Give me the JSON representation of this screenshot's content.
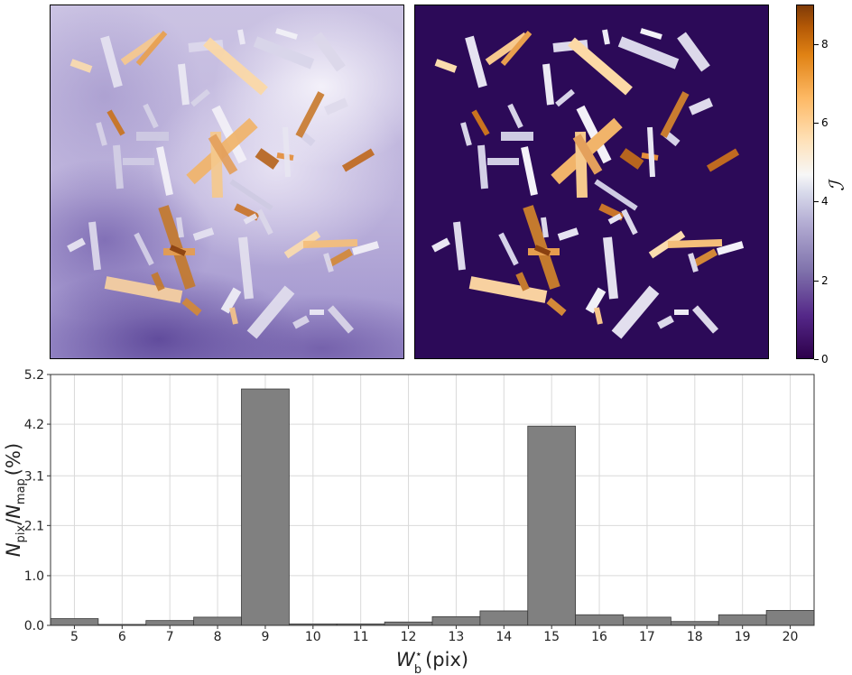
{
  "colorbar": {
    "label": "ℐ",
    "ticks": [
      {
        "label": "0",
        "value": 0
      },
      {
        "label": "2",
        "value": 2
      },
      {
        "label": "4",
        "value": 4
      },
      {
        "label": "6",
        "value": 6
      },
      {
        "label": "8",
        "value": 8
      }
    ],
    "range": [
      0,
      9
    ]
  },
  "chart_data": {
    "type": "bar",
    "categories": [
      "5",
      "6",
      "7",
      "8",
      "9",
      "10",
      "11",
      "12",
      "13",
      "14",
      "15",
      "16",
      "17",
      "18",
      "19",
      "20"
    ],
    "values": [
      0.14,
      0.02,
      0.1,
      0.17,
      4.9,
      0.03,
      0.03,
      0.07,
      0.18,
      0.3,
      4.13,
      0.22,
      0.17,
      0.08,
      0.22,
      0.31
    ],
    "ylim": [
      0,
      5.2
    ],
    "yticks": [
      "0.0",
      "1.0",
      "2.1",
      "3.1",
      "4.2",
      "5.2"
    ],
    "ytick_values": [
      0.0,
      1.03,
      2.07,
      3.1,
      4.17,
      5.2
    ],
    "xlabel_main": "W",
    "xlabel_sub": "b",
    "xlabel_sup": "⋆",
    "xlabel_unit": "(pix)",
    "ylabel_main": "N",
    "ylabel_sub1": "pix",
    "ylabel_div": "/",
    "ylabel_main2": "N",
    "ylabel_sub2": "map",
    "ylabel_unit": "(%)",
    "grid": true,
    "colors": {
      "bar": "#808080",
      "bar_edge": "#3a3a3a"
    }
  }
}
